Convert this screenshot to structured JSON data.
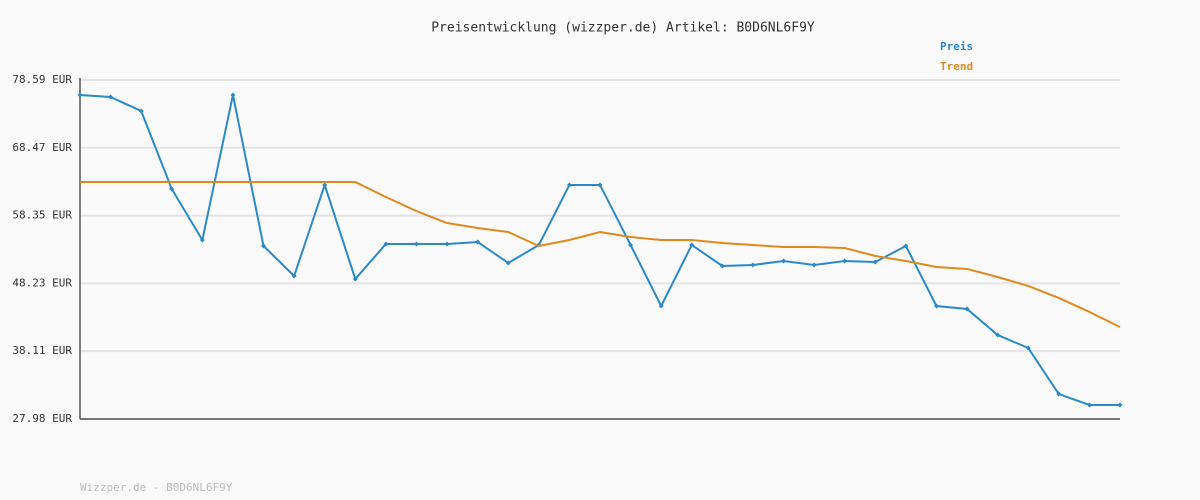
{
  "chart_data": {
    "type": "line",
    "title": "Preisentwicklung (wizzper.de) Artikel: B0D6NL6F9Y",
    "footer": "Wizzper.de - B0D6NL6F9Y",
    "categories": [
      null,
      null,
      null,
      null,
      null,
      null,
      null,
      null,
      null,
      null,
      null,
      null,
      null,
      null,
      null,
      null,
      null,
      null,
      null,
      null,
      null,
      null,
      null,
      null,
      null,
      null,
      null,
      null,
      null,
      null,
      null,
      null,
      null,
      null,
      null
    ],
    "series": [
      {
        "name": "Preis",
        "color": "#2a8ac8",
        "markers": true,
        "values": [
          76.35,
          76.05,
          73.96,
          62.32,
          54.7,
          76.35,
          53.81,
          49.33,
          62.92,
          48.88,
          54.11,
          54.11,
          54.11,
          54.41,
          51.27,
          53.96,
          62.92,
          62.92,
          53.96,
          44.85,
          53.96,
          50.82,
          50.97,
          51.57,
          50.97,
          51.57,
          51.42,
          53.81,
          44.85,
          44.4,
          40.52,
          38.58,
          31.71,
          30.07,
          30.07
        ]
      },
      {
        "name": "Trend",
        "color": "#e08a1e",
        "markers": false,
        "values": [
          63.36,
          63.36,
          63.36,
          63.36,
          63.36,
          63.36,
          63.36,
          63.36,
          63.36,
          63.36,
          61.12,
          59.03,
          57.24,
          56.5,
          55.9,
          53.81,
          54.7,
          55.9,
          55.15,
          54.7,
          54.7,
          54.26,
          53.96,
          53.66,
          53.66,
          53.51,
          52.32,
          51.57,
          50.67,
          50.38,
          49.18,
          47.84,
          46.05,
          43.96,
          41.72
        ]
      }
    ],
    "ylim": [
      27.98,
      78.59
    ],
    "yticks": [
      {
        "value": 27.98,
        "label": "27.98 EUR"
      },
      {
        "value": 38.11,
        "label": "38.11 EUR"
      },
      {
        "value": 48.23,
        "label": "48.23 EUR"
      },
      {
        "value": 58.35,
        "label": "58.35 EUR"
      },
      {
        "value": 68.47,
        "label": "68.47 EUR"
      },
      {
        "value": 78.59,
        "label": "78.59 EUR"
      }
    ],
    "grid": true,
    "legend": "top-right"
  }
}
